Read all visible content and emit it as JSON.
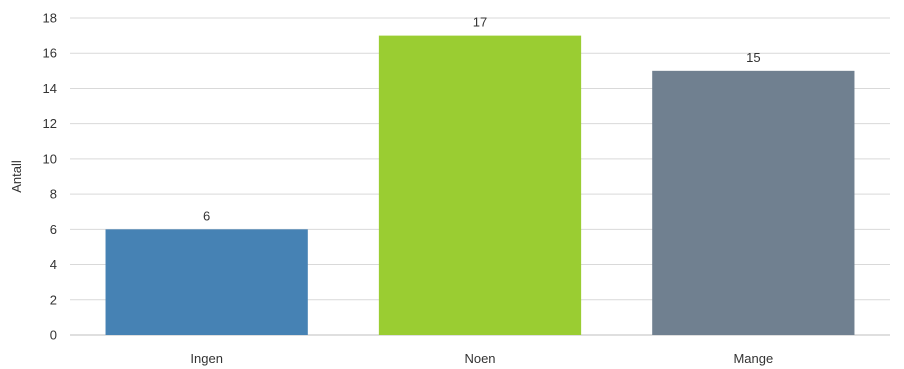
{
  "chart_data": {
    "type": "bar",
    "categories": [
      "Ingen",
      "Noen",
      "Mange"
    ],
    "values": [
      6,
      17,
      15
    ],
    "data_labels": [
      "6",
      "17",
      "15"
    ],
    "colors": [
      "#4682b4",
      "#9acd32",
      "#708090"
    ],
    "title": "",
    "xlabel": "",
    "ylabel": "Antall",
    "ylim": [
      0,
      18
    ],
    "yticks": [
      0,
      2,
      4,
      6,
      8,
      10,
      12,
      14,
      16,
      18
    ],
    "ytick_labels": [
      "0",
      "2",
      "4",
      "6",
      "8",
      "10",
      "12",
      "14",
      "16",
      "18"
    ],
    "grid": true,
    "legend": "none"
  }
}
